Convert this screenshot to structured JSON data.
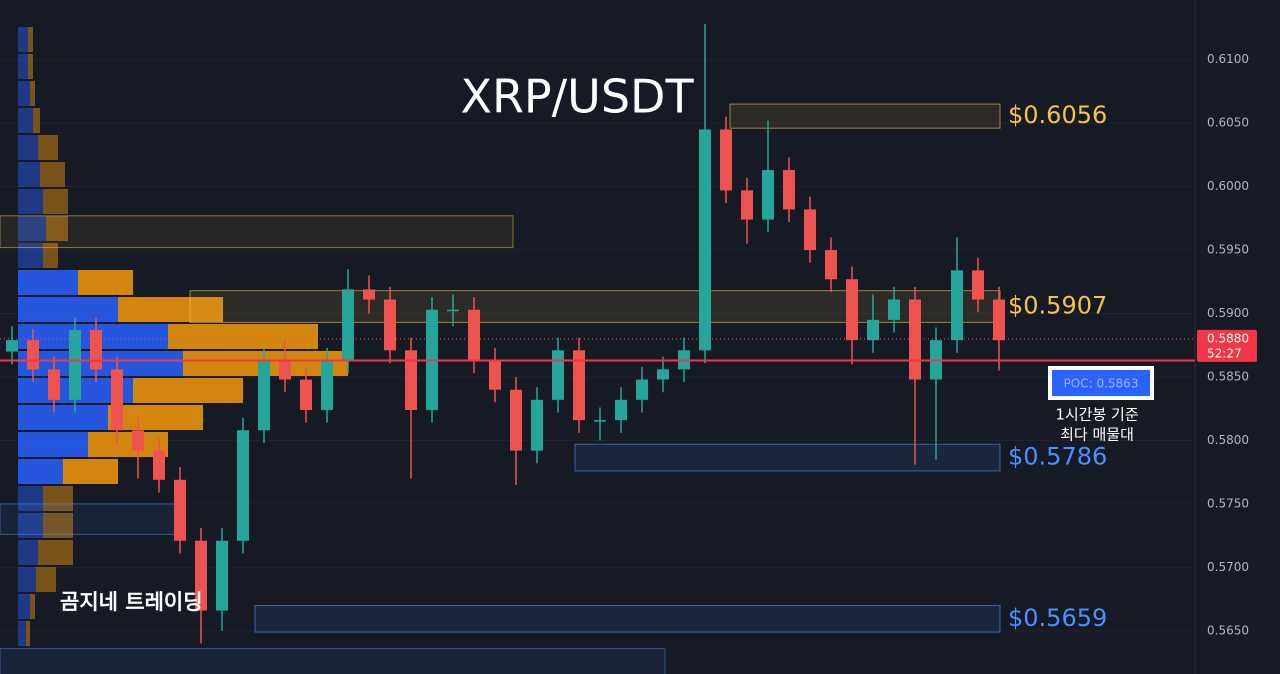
{
  "chart_data": {
    "type": "candlestick",
    "title": "XRP/USDT",
    "watermark": "곰지네 트레이딩",
    "up_color": "#26a69a",
    "down_color": "#ef5350",
    "ylim": [
      0.5616,
      0.6147
    ],
    "yticks": [
      {
        "value": 0.565,
        "label": "0.5650"
      },
      {
        "value": 0.57,
        "label": "0.5700"
      },
      {
        "value": 0.575,
        "label": "0.5750"
      },
      {
        "value": 0.58,
        "label": "0.5800"
      },
      {
        "value": 0.585,
        "label": "0.5850"
      },
      {
        "value": 0.59,
        "label": "0.5900"
      },
      {
        "value": 0.595,
        "label": "0.5950"
      },
      {
        "value": 0.6,
        "label": "0.6000"
      },
      {
        "value": 0.605,
        "label": "0.6050"
      },
      {
        "value": 0.61,
        "label": "0.6100"
      }
    ],
    "open": [
      0.587,
      0.5879,
      0.5856,
      0.5832,
      0.5887,
      0.5856,
      0.5808,
      0.5792,
      0.5769,
      0.5721,
      0.5666,
      0.5721,
      0.5808,
      0.5863,
      0.5848,
      0.5824,
      0.5863,
      0.5919,
      0.5911,
      0.5871,
      0.5824,
      0.5903,
      0.5903,
      0.5863,
      0.584,
      0.5792,
      0.5832,
      0.5871,
      0.5816,
      0.5816,
      0.5832,
      0.5848,
      0.5856,
      0.5871,
      0.6045,
      0.5997,
      0.5974,
      0.6013,
      0.5982,
      0.595,
      0.5927,
      0.5879,
      0.5895,
      0.5911,
      0.5848,
      0.5879,
      0.5934,
      0.5911
    ],
    "high": [
      0.589,
      0.5888,
      0.5866,
      0.5897,
      0.5897,
      0.5866,
      0.5818,
      0.5802,
      0.5779,
      0.5731,
      0.5731,
      0.5818,
      0.5873,
      0.588,
      0.5858,
      0.5873,
      0.5935,
      0.593,
      0.5921,
      0.5881,
      0.5913,
      0.5915,
      0.5913,
      0.5873,
      0.585,
      0.5842,
      0.5881,
      0.5881,
      0.5826,
      0.5842,
      0.5858,
      0.5866,
      0.5881,
      0.6128,
      0.6055,
      0.6007,
      0.6052,
      0.6023,
      0.5992,
      0.596,
      0.5937,
      0.5915,
      0.5921,
      0.5921,
      0.5889,
      0.596,
      0.5944,
      0.5921
    ],
    "low": [
      0.586,
      0.5846,
      0.5822,
      0.5822,
      0.5846,
      0.5798,
      0.577,
      0.5759,
      0.5711,
      0.564,
      0.565,
      0.5711,
      0.5798,
      0.5838,
      0.5814,
      0.5814,
      0.5853,
      0.59,
      0.5861,
      0.577,
      0.5814,
      0.589,
      0.5853,
      0.583,
      0.5765,
      0.5782,
      0.5822,
      0.5806,
      0.58,
      0.5806,
      0.5822,
      0.5838,
      0.5846,
      0.5861,
      0.5987,
      0.5955,
      0.5964,
      0.5972,
      0.594,
      0.5917,
      0.586,
      0.5869,
      0.5885,
      0.5781,
      0.5785,
      0.5869,
      0.5901,
      0.5855
    ],
    "close": [
      0.5879,
      0.5856,
      0.5832,
      0.5887,
      0.5856,
      0.5808,
      0.5792,
      0.5769,
      0.5721,
      0.5666,
      0.5721,
      0.5808,
      0.5863,
      0.5848,
      0.5824,
      0.5863,
      0.5919,
      0.5911,
      0.5871,
      0.5824,
      0.5903,
      0.5903,
      0.5863,
      0.584,
      0.5792,
      0.5832,
      0.5871,
      0.5816,
      0.5816,
      0.5832,
      0.5848,
      0.5856,
      0.5871,
      0.6045,
      0.5997,
      0.5974,
      0.6013,
      0.5982,
      0.595,
      0.5927,
      0.5879,
      0.5895,
      0.5911,
      0.5848,
      0.5879,
      0.5934,
      0.5911,
      0.5879
    ],
    "zones": [
      {
        "top": 0.6065,
        "bottom": 0.6046,
        "label": "$0.6056",
        "color": "#f5c542"
      },
      {
        "top": 0.5918,
        "bottom": 0.5893,
        "label": "$0.5907",
        "color": "#f5c542"
      },
      {
        "top": 0.5797,
        "bottom": 0.5776,
        "label": "$0.5786",
        "color": "#4a90ff"
      },
      {
        "top": 0.567,
        "bottom": 0.5649,
        "label": "$0.5659",
        "color": "#4a90ff"
      }
    ],
    "extra_zones": [
      {
        "top": 0.5977,
        "bottom": 0.5952
      },
      {
        "top": 0.575,
        "bottom": 0.5726
      },
      {
        "top": 0.5636,
        "bottom": 0.5612
      }
    ],
    "volume_profile": {
      "buy": [
        10,
        10,
        12,
        15,
        20,
        22,
        25,
        28,
        25,
        60,
        100,
        150,
        165,
        115,
        90,
        70,
        45,
        25,
        25,
        20,
        18,
        12,
        8
      ],
      "sell": [
        5,
        5,
        5,
        7,
        20,
        25,
        25,
        22,
        15,
        55,
        105,
        150,
        165,
        110,
        95,
        80,
        55,
        30,
        30,
        35,
        20,
        5,
        4
      ]
    },
    "poc": {
      "value": 0.5863,
      "label": "POC: 0.5863",
      "note": [
        "1시간봉 기준",
        "최다 매물대"
      ]
    },
    "last_price": {
      "value": 0.588,
      "label": "0.5880",
      "countdown": "52:27"
    }
  }
}
